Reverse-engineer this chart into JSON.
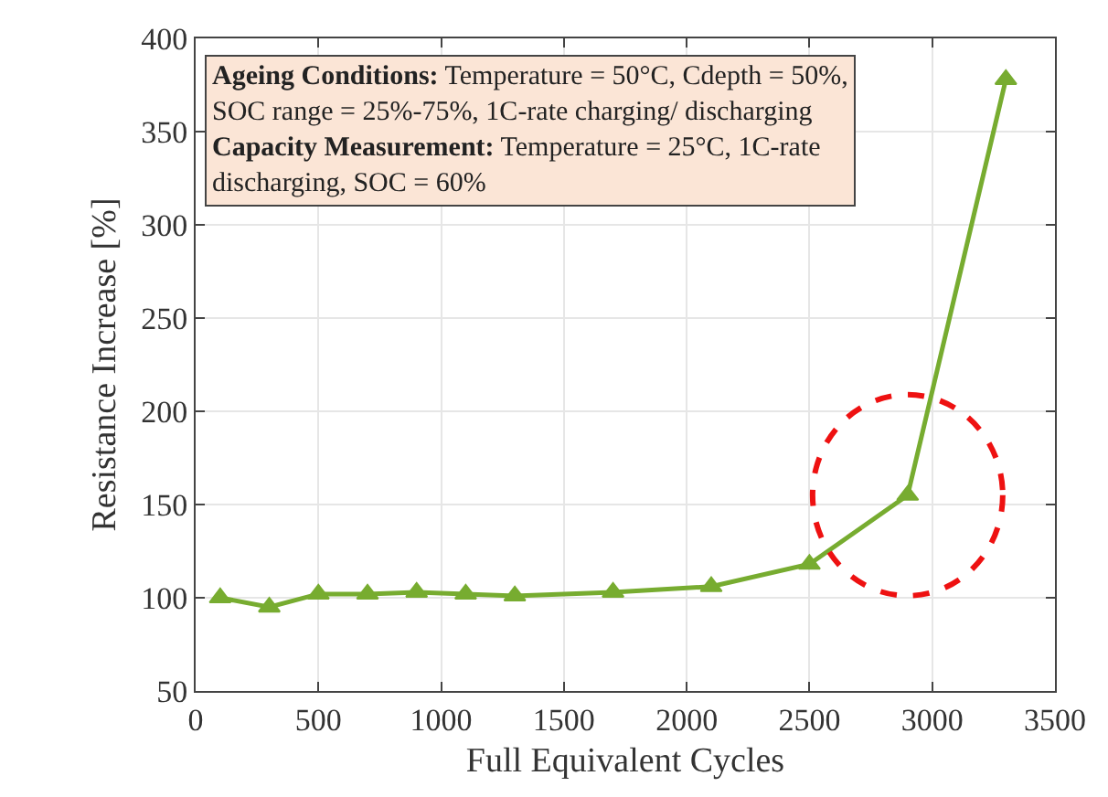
{
  "chart_data": {
    "type": "line",
    "xlabel": "Full Equivalent Cycles",
    "ylabel": "Resistance Increase [%]",
    "x": [
      100,
      300,
      500,
      700,
      900,
      1100,
      1300,
      1700,
      2100,
      2500,
      2900,
      3300
    ],
    "series": [
      {
        "color": "#77ac30",
        "values": [
          100,
          95,
          102,
          102,
          103,
          102,
          101,
          103,
          106,
          118,
          155,
          378
        ]
      }
    ],
    "xlim": [
      0,
      3500
    ],
    "xticks": [
      0,
      500,
      1000,
      1500,
      2000,
      2500,
      3000,
      3500
    ],
    "ylim": [
      50,
      400
    ],
    "yticks": [
      50,
      100,
      150,
      200,
      250,
      300,
      350,
      400
    ],
    "grid": true,
    "marker": "triangle",
    "line_style": "solid",
    "annotations": [
      "Ageing Conditions: Temperature = 50°C, Cdepth = 50%, SOC range = 25%-75%, 1C-rate charging/ discharging",
      "Capacity Measurement: Temperature = 25°C, 1C-rate discharging, SOC = 60%"
    ]
  }
}
